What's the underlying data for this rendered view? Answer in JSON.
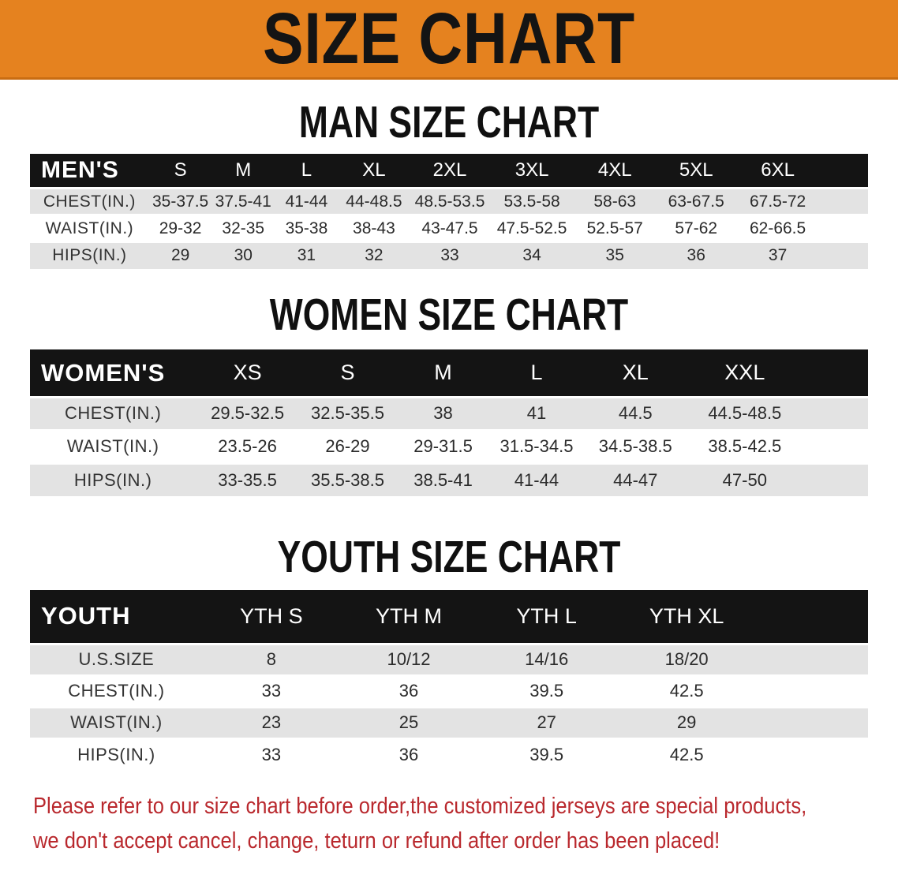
{
  "banner": {
    "title": "SIZE CHART"
  },
  "colors": {
    "banner_orange": "#E5821F",
    "header_black": "#141414",
    "row_gray": "#E3E3E3",
    "disclaimer_red": "#B9282D"
  },
  "sections": [
    {
      "heading": "MAN SIZE CHART",
      "table": {
        "header_label": "MEN'S",
        "columns": [
          "S",
          "M",
          "L",
          "XL",
          "2XL",
          "3XL",
          "4XL",
          "5XL",
          "6XL"
        ],
        "rows": [
          {
            "label": "CHEST(IN.)",
            "values": [
              "35-37.5",
              "37.5-41",
              "41-44",
              "44-48.5",
              "48.5-53.5",
              "53.5-58",
              "58-63",
              "63-67.5",
              "67.5-72"
            ]
          },
          {
            "label": "WAIST(IN.)",
            "values": [
              "29-32",
              "32-35",
              "35-38",
              "38-43",
              "43-47.5",
              "47.5-52.5",
              "52.5-57",
              "57-62",
              "62-66.5"
            ]
          },
          {
            "label": "HIPS(IN.)",
            "values": [
              "29",
              "30",
              "31",
              "32",
              "33",
              "34",
              "35",
              "36",
              "37"
            ]
          }
        ]
      }
    },
    {
      "heading": "WOMEN SIZE CHART",
      "table": {
        "header_label": "WOMEN'S",
        "columns": [
          "XS",
          "S",
          "M",
          "L",
          "XL",
          "XXL"
        ],
        "rows": [
          {
            "label": "CHEST(IN.)",
            "values": [
              "29.5-32.5",
              "32.5-35.5",
              "38",
              "41",
              "44.5",
              "44.5-48.5"
            ]
          },
          {
            "label": "WAIST(IN.)",
            "values": [
              "23.5-26",
              "26-29",
              "29-31.5",
              "31.5-34.5",
              "34.5-38.5",
              "38.5-42.5"
            ]
          },
          {
            "label": "HIPS(IN.)",
            "values": [
              "33-35.5",
              "35.5-38.5",
              "38.5-41",
              "41-44",
              "44-47",
              "47-50"
            ]
          }
        ]
      }
    },
    {
      "heading": "YOUTH SIZE CHART",
      "table": {
        "header_label": "YOUTH",
        "columns": [
          "YTH S",
          "YTH M",
          "YTH L",
          "YTH XL"
        ],
        "rows": [
          {
            "label": "U.S.SIZE",
            "values": [
              "8",
              "10/12",
              "14/16",
              "18/20"
            ]
          },
          {
            "label": "CHEST(IN.)",
            "values": [
              "33",
              "36",
              "39.5",
              "42.5"
            ]
          },
          {
            "label": "WAIST(IN.)",
            "values": [
              "23",
              "25",
              "27",
              "29"
            ]
          },
          {
            "label": "HIPS(IN.)",
            "values": [
              "33",
              "36",
              "39.5",
              "42.5"
            ]
          }
        ]
      }
    }
  ],
  "disclaimer": {
    "line1": "Please refer to our size chart before order,the customized jerseys are special products,",
    "line2": "we don't accept cancel, change, teturn or refund after order has been placed!"
  }
}
